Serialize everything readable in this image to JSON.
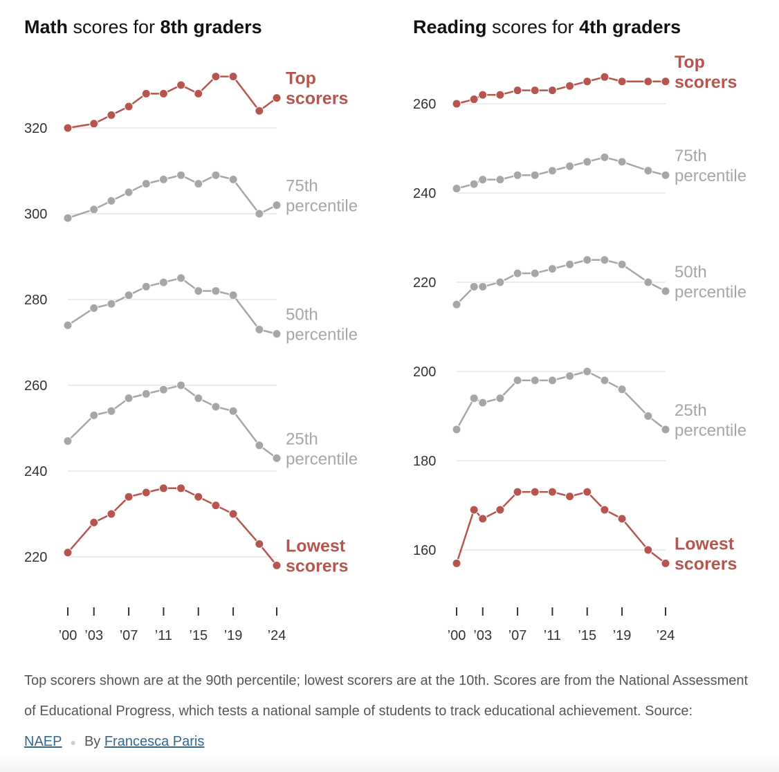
{
  "titles": {
    "math": {
      "bold1": "Math",
      "light": " scores for ",
      "bold2": "8th graders"
    },
    "reading": {
      "bold1": "Reading",
      "light": " scores for ",
      "bold2": "4th graders"
    }
  },
  "colors": {
    "highlight": "#b5554e",
    "muted": "#a6a6a6",
    "grid": "#e6e6e6",
    "axis_text": "#333333"
  },
  "footnote": {
    "text": "Top scorers shown are at the 90th percentile; lowest scorers are at the 10th. Scores are from the National Assessment of Educational Progress, which tests a national sample of students to track educational achievement. Source: ",
    "source_link": "NAEP",
    "byline_prefix": "By ",
    "author_link": "Francesca Paris"
  },
  "chart_data": [
    {
      "type": "line",
      "title": "Math scores for 8th graders",
      "x": [
        2000,
        2003,
        2005,
        2007,
        2009,
        2011,
        2013,
        2015,
        2017,
        2019,
        2022,
        2024
      ],
      "x_ticks": [
        2000,
        2003,
        2007,
        2011,
        2015,
        2019,
        2024
      ],
      "x_tick_labels": [
        "’00",
        "’03",
        "’07",
        "’11",
        "’15",
        "’19",
        "’24"
      ],
      "y_ticks": [
        220,
        240,
        260,
        280,
        300,
        320
      ],
      "ylim": [
        213,
        335
      ],
      "grid": true,
      "series": [
        {
          "name": "Top scorers",
          "highlight": true,
          "values": [
            320,
            321,
            323,
            325,
            328,
            328,
            330,
            328,
            332,
            332,
            324,
            327
          ]
        },
        {
          "name": "75th percentile",
          "highlight": false,
          "values": [
            299,
            301,
            303,
            305,
            307,
            308,
            309,
            307,
            309,
            308,
            300,
            302
          ]
        },
        {
          "name": "50th percentile",
          "highlight": false,
          "values": [
            274,
            278,
            279,
            281,
            283,
            284,
            285,
            282,
            282,
            281,
            273,
            272
          ]
        },
        {
          "name": "25th percentile",
          "highlight": false,
          "values": [
            247,
            253,
            254,
            257,
            258,
            259,
            260,
            257,
            255,
            254,
            246,
            243
          ]
        },
        {
          "name": "Lowest scorers",
          "highlight": true,
          "values": [
            221,
            228,
            230,
            234,
            235,
            236,
            236,
            234,
            232,
            230,
            223,
            218
          ]
        }
      ]
    },
    {
      "type": "line",
      "title": "Reading scores for 4th graders",
      "x": [
        2000,
        2002,
        2003,
        2005,
        2007,
        2009,
        2011,
        2013,
        2015,
        2017,
        2019,
        2022,
        2024
      ],
      "x_ticks": [
        2000,
        2003,
        2007,
        2011,
        2015,
        2019,
        2024
      ],
      "x_tick_labels": [
        "’00",
        "’03",
        "’07",
        "’11",
        "’15",
        "’19",
        "’24"
      ],
      "y_ticks": [
        160,
        180,
        200,
        220,
        240,
        260
      ],
      "ylim": [
        150,
        268
      ],
      "grid": true,
      "series": [
        {
          "name": "Top scorers",
          "highlight": true,
          "values": [
            260,
            261,
            262,
            262,
            263,
            263,
            263,
            264,
            265,
            266,
            265,
            265,
            265
          ]
        },
        {
          "name": "75th percentile",
          "highlight": false,
          "values": [
            241,
            242,
            243,
            243,
            244,
            244,
            245,
            246,
            247,
            248,
            247,
            245,
            244
          ]
        },
        {
          "name": "50th percentile",
          "highlight": false,
          "values": [
            215,
            219,
            219,
            220,
            222,
            222,
            223,
            224,
            225,
            225,
            224,
            220,
            218
          ]
        },
        {
          "name": "25th percentile",
          "highlight": false,
          "values": [
            187,
            194,
            193,
            194,
            198,
            198,
            198,
            199,
            200,
            198,
            196,
            190,
            187
          ]
        },
        {
          "name": "Lowest scorers",
          "highlight": true,
          "values": [
            157,
            169,
            167,
            169,
            173,
            173,
            173,
            172,
            173,
            169,
            167,
            160,
            157
          ]
        }
      ]
    }
  ]
}
